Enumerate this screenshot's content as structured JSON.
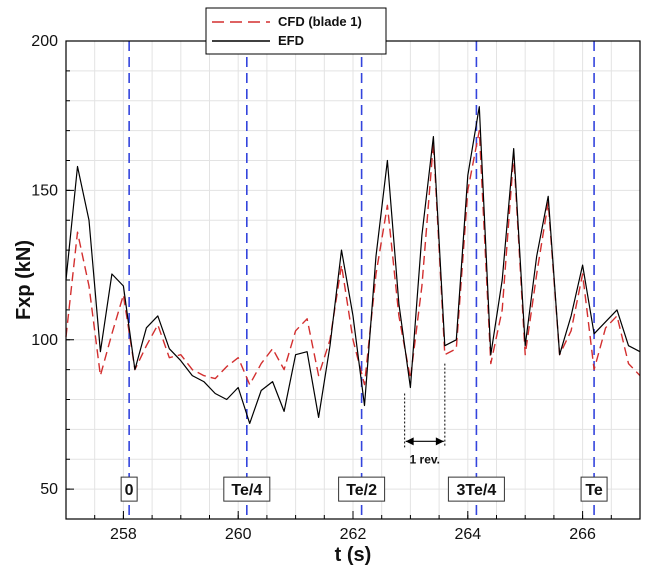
{
  "chart_data": {
    "type": "line",
    "xlabel": "t (s)",
    "ylabel": "Fxp (kN)",
    "xlim": [
      257.0,
      267.0
    ],
    "ylim": [
      40,
      200
    ],
    "x_ticks": [
      258,
      260,
      262,
      264,
      266
    ],
    "y_ticks": [
      50,
      100,
      150,
      200
    ],
    "grid": true,
    "legend_position": "top-center",
    "colors": {
      "cfd": "#d32f2f",
      "efd": "#000000",
      "marker_line": "#3344dd",
      "grid": "#e3e3e3"
    },
    "series": [
      {
        "name": "CFD (blade 1)",
        "style": "dashed",
        "x": [
          257.0,
          257.2,
          257.4,
          257.6,
          257.8,
          258.0,
          258.2,
          258.4,
          258.6,
          258.8,
          259.0,
          259.2,
          259.4,
          259.6,
          259.8,
          260.0,
          260.2,
          260.4,
          260.6,
          260.8,
          261.0,
          261.2,
          261.4,
          261.6,
          261.8,
          262.0,
          262.2,
          262.4,
          262.6,
          262.8,
          263.0,
          263.2,
          263.4,
          263.6,
          263.8,
          264.0,
          264.2,
          264.4,
          264.6,
          264.8,
          265.0,
          265.2,
          265.4,
          265.6,
          265.8,
          266.0,
          266.2,
          266.4,
          266.6,
          266.8,
          267.0
        ],
        "values": [
          101,
          136,
          118,
          88,
          102,
          115,
          90,
          98,
          105,
          94,
          95,
          90,
          88,
          87,
          91,
          94,
          85,
          92,
          97,
          90,
          103,
          107,
          88,
          100,
          125,
          100,
          85,
          122,
          145,
          108,
          87,
          118,
          166,
          95,
          97,
          150,
          170,
          92,
          110,
          162,
          95,
          122,
          146,
          95,
          103,
          122,
          90,
          104,
          108,
          92,
          88
        ]
      },
      {
        "name": "EFD",
        "style": "solid",
        "x": [
          257.0,
          257.2,
          257.4,
          257.6,
          257.8,
          258.0,
          258.2,
          258.4,
          258.6,
          258.8,
          259.0,
          259.2,
          259.4,
          259.6,
          259.8,
          260.0,
          260.2,
          260.4,
          260.6,
          260.8,
          261.0,
          261.2,
          261.4,
          261.6,
          261.8,
          262.0,
          262.2,
          262.4,
          262.6,
          262.8,
          263.0,
          263.2,
          263.4,
          263.6,
          263.8,
          264.0,
          264.2,
          264.4,
          264.6,
          264.8,
          265.0,
          265.2,
          265.4,
          265.6,
          265.8,
          266.0,
          266.2,
          266.4,
          266.6,
          266.8,
          267.0
        ],
        "values": [
          120,
          158,
          140,
          96,
          122,
          118,
          90,
          104,
          108,
          97,
          93,
          88,
          86,
          82,
          80,
          84,
          72,
          83,
          86,
          76,
          95,
          96,
          74,
          98,
          130,
          108,
          78,
          128,
          160,
          112,
          84,
          135,
          168,
          98,
          100,
          155,
          178,
          95,
          120,
          164,
          98,
          128,
          148,
          95,
          108,
          125,
          102,
          106,
          110,
          98,
          96
        ]
      }
    ],
    "legend": [
      "CFD (blade 1)",
      "EFD"
    ],
    "markers": [
      {
        "x": 258.1,
        "label": "0"
      },
      {
        "x": 260.15,
        "label": "Te/4"
      },
      {
        "x": 262.15,
        "label": "Te/2"
      },
      {
        "x": 264.15,
        "label": "3Te/4"
      },
      {
        "x": 266.2,
        "label": "Te"
      }
    ],
    "annotation": {
      "text": "1 rev.",
      "x_start": 262.9,
      "x_end": 263.6,
      "y": 66
    }
  }
}
